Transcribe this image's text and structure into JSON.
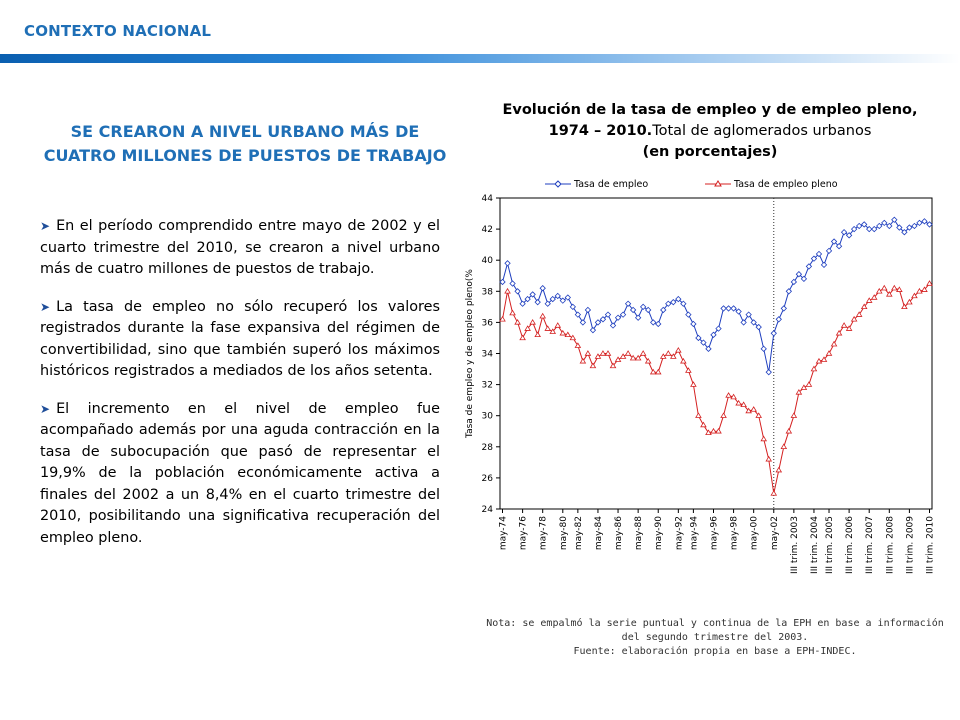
{
  "header": {
    "section_label": "CONTEXTO NACIONAL"
  },
  "colors": {
    "accent": "#1f6fb6",
    "series_empleo": "#1f3fbf",
    "series_pleno": "#d42020"
  },
  "left": {
    "headline": "SE CREARON A NIVEL URBANO MÁS DE CUATRO MILLONES DE PUESTOS DE TRABAJO",
    "bullets": [
      "En el período comprendido entre mayo de 2002 y el cuarto trimestre del 2010, se crearon a nivel urbano más de cuatro millones de puestos de trabajo.",
      "La tasa de empleo no sólo recuperó los valores registrados durante la fase expansiva del régimen de convertibilidad, sino que también superó los máximos históricos registrados a mediados de los años setenta.",
      "El incremento en el nivel de empleo fue acompañado además por una aguda contracción en la tasa de subocupación que pasó de representar el 19,9% de la población económicamente activa a finales del 2002 a un 8,4% en el cuarto trimestre del 2010, posibilitando una significativa recuperación del empleo pleno."
    ]
  },
  "chart_title": {
    "line1": "Evolución de la tasa de empleo y de empleo pleno,",
    "line2a": "1974 – 2010.",
    "line2b": "Total de aglomerados urbanos",
    "line3": "(en porcentajes)"
  },
  "chart_data": {
    "type": "line",
    "title": "Evolución de la tasa de empleo y de empleo pleno, 1974 – 2010.Total de aglomerados urbanos (en porcentajes)",
    "ylabel": "Tasa de empleo y de empleo pleno(%",
    "ylim": [
      24,
      44
    ],
    "yticks": [
      24,
      26,
      28,
      30,
      32,
      34,
      36,
      38,
      40,
      42,
      44
    ],
    "legend_position": "top",
    "xtick_labels": [
      "may-74",
      "may-76",
      "may-78",
      "may-80",
      "may-82",
      "may-84",
      "may-86",
      "may-88",
      "may-90",
      "may-92",
      "may-94",
      "may-96",
      "may-98",
      "may-00",
      "may-02",
      "III trim. 2003",
      "III trim. 2004",
      "III trim. 2005",
      "III trim. 2006",
      "III trim. 2007",
      "III trim. 2008",
      "III trim. 2009",
      "III trim. 2010"
    ],
    "vertical_marker_at": "may-02",
    "series": [
      {
        "name": "Tasa de empleo",
        "marker": "diamond",
        "values": [
          38.6,
          39.8,
          38.5,
          38.0,
          37.2,
          37.5,
          37.8,
          37.3,
          38.2,
          37.2,
          37.5,
          37.7,
          37.4,
          37.6,
          37.0,
          36.5,
          36.0,
          36.8,
          35.5,
          36.0,
          36.2,
          36.5,
          35.8,
          36.3,
          36.5,
          37.2,
          36.8,
          36.3,
          37.0,
          36.8,
          36.0,
          35.9,
          36.8,
          37.2,
          37.3,
          37.5,
          37.2,
          36.5,
          35.9,
          35.0,
          34.7,
          34.3,
          35.2,
          35.6,
          36.9,
          36.9,
          36.9,
          36.7,
          36.0,
          36.5,
          36.0,
          35.7,
          34.3,
          32.8,
          35.3,
          36.2,
          36.9,
          38.0,
          38.6,
          39.1,
          38.8,
          39.6,
          40.1,
          40.4,
          39.7,
          40.6,
          41.2,
          40.9,
          41.8,
          41.6,
          42.0,
          42.2,
          42.3,
          42.0,
          42.0,
          42.2,
          42.4,
          42.2,
          42.6,
          42.1,
          41.8,
          42.1,
          42.2,
          42.4,
          42.5,
          42.3
        ]
      },
      {
        "name": "Tasa de empleo pleno",
        "marker": "triangle",
        "values": [
          36.2,
          38.0,
          36.6,
          36.0,
          35.0,
          35.6,
          36.0,
          35.2,
          36.4,
          35.6,
          35.4,
          35.8,
          35.3,
          35.2,
          35.0,
          34.5,
          33.5,
          34.0,
          33.2,
          33.8,
          34.0,
          34.0,
          33.2,
          33.6,
          33.8,
          34.0,
          33.7,
          33.7,
          34.0,
          33.5,
          32.8,
          32.8,
          33.8,
          34.0,
          33.8,
          34.2,
          33.5,
          32.9,
          32.0,
          30.0,
          29.4,
          28.9,
          29.0,
          29.0,
          30.0,
          31.3,
          31.2,
          30.8,
          30.7,
          30.3,
          30.4,
          30.0,
          28.5,
          27.2,
          25.0,
          26.5,
          28.0,
          29.0,
          30.0,
          31.5,
          31.8,
          32.0,
          33.0,
          33.5,
          33.6,
          34.0,
          34.6,
          35.3,
          35.8,
          35.6,
          36.2,
          36.5,
          37.0,
          37.4,
          37.6,
          38.0,
          38.2,
          37.8,
          38.2,
          38.1,
          37.0,
          37.3,
          37.7,
          38.0,
          38.1,
          38.5
        ]
      }
    ]
  },
  "note": {
    "line1": "Nota: se empalmó la serie puntual y continua de la EPH en base a información",
    "line2": "del segundo trimestre del 2003.",
    "line3": "Fuente: elaboración propia en base a EPH-INDEC."
  }
}
